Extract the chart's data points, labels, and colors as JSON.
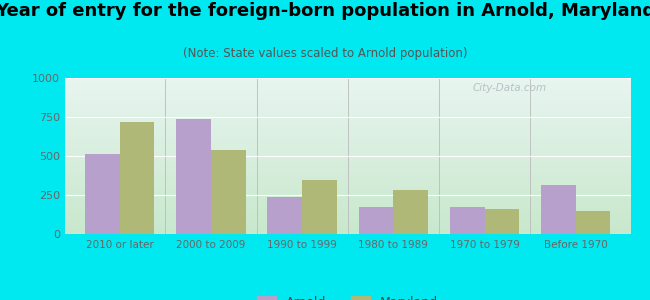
{
  "title": "Year of entry for the foreign-born population in Arnold, Maryland",
  "subtitle": "(Note: State values scaled to Arnold population)",
  "categories": [
    "2010 or later",
    "2000 to 2009",
    "1990 to 1999",
    "1980 to 1989",
    "1970 to 1979",
    "Before 1970"
  ],
  "arnold_values": [
    510,
    740,
    240,
    175,
    175,
    315
  ],
  "maryland_values": [
    720,
    540,
    345,
    285,
    160,
    150
  ],
  "arnold_color": "#b8a0cc",
  "maryland_color": "#b0b878",
  "background_outer": "#00e8f0",
  "background_chart_top": "#e8f5f0",
  "background_chart_bottom": "#c8e8cc",
  "ylim": [
    0,
    1000
  ],
  "yticks": [
    0,
    250,
    500,
    750,
    1000
  ],
  "bar_width": 0.38,
  "legend_labels": [
    "Arnold",
    "Maryland"
  ],
  "title_fontsize": 13,
  "subtitle_fontsize": 8.5
}
